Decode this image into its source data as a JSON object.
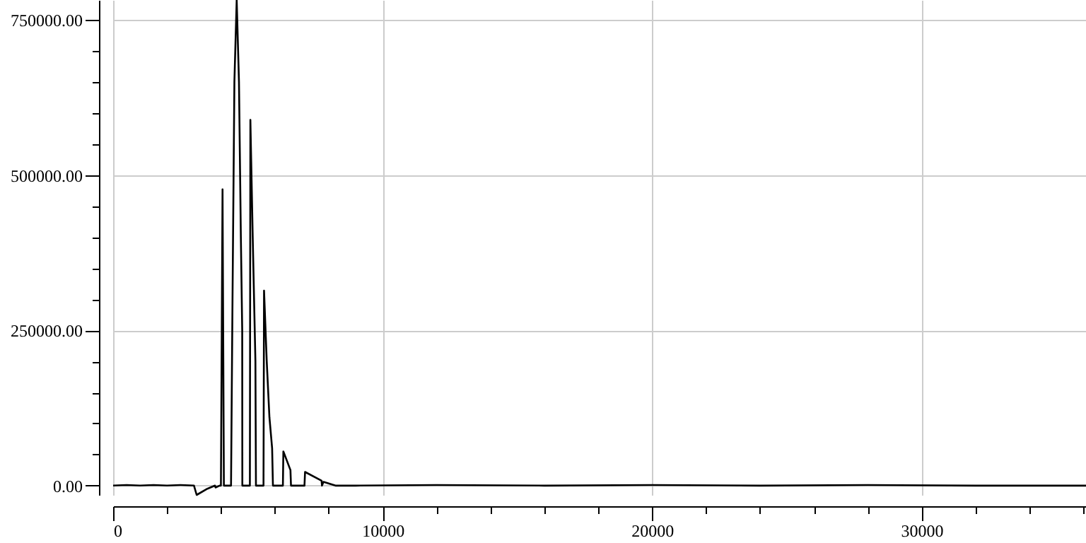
{
  "chart_data": {
    "type": "line",
    "x": [
      0,
      500,
      1000,
      1500,
      2000,
      2500,
      3000,
      3100,
      3500,
      3780,
      3800,
      3950,
      4000,
      4060,
      4110,
      4375,
      4430,
      4500,
      4585,
      4670,
      4740,
      4790,
      4795,
      5075,
      5093,
      5180,
      5280,
      5300,
      5580,
      5600,
      5700,
      5800,
      5900,
      5930,
      6300,
      6317,
      6580,
      6600,
      7100,
      7122,
      7735,
      7750,
      7805,
      8250,
      9000,
      12000,
      16000,
      20000,
      24000,
      28000,
      32000,
      36100
    ],
    "series": [
      {
        "color": "#000000",
        "values": [
          0,
          1000,
          0,
          1000,
          0,
          1000,
          0,
          -15000,
          -5000,
          0,
          -3000,
          0,
          0,
          477000,
          0,
          0,
          300000,
          650000,
          782000,
          650000,
          400000,
          250000,
          0,
          0,
          589000,
          400000,
          200000,
          0,
          0,
          314000,
          200000,
          110000,
          60000,
          0,
          0,
          55000,
          25000,
          0,
          0,
          22000,
          8000,
          0,
          6000,
          0,
          0,
          1000,
          0,
          1000,
          0,
          1000,
          0,
          0
        ]
      }
    ],
    "xlim": [
      0,
      36100
    ],
    "ylim": [
      -15000,
      782000
    ],
    "xticks": [
      0,
      {
        "value": 2000,
        "label": null
      },
      {
        "value": 4000,
        "label": null
      },
      {
        "value": 6000,
        "label": null
      },
      {
        "value": 8000,
        "label": null
      },
      10000,
      {
        "value": 12000,
        "label": null
      },
      {
        "value": 14000,
        "label": null
      },
      {
        "value": 16000,
        "label": null
      },
      {
        "value": 18000,
        "label": null
      },
      20000,
      {
        "value": 22000,
        "label": null
      },
      {
        "value": 24000,
        "label": null
      },
      {
        "value": 26000,
        "label": null
      },
      {
        "value": 28000,
        "label": null
      },
      30000,
      {
        "value": 32000,
        "label": null
      },
      {
        "value": 34000,
        "label": null
      },
      {
        "value": 36000,
        "label": null
      }
    ],
    "yticks": [
      {
        "value": 0,
        "label": "0.00"
      },
      {
        "value": 50000,
        "label": null
      },
      {
        "value": 100000,
        "label": null
      },
      {
        "value": 150000,
        "label": null
      },
      {
        "value": 200000,
        "label": null
      },
      {
        "value": 250000,
        "label": "250000.00"
      },
      {
        "value": 300000,
        "label": null
      },
      {
        "value": 350000,
        "label": null
      },
      {
        "value": 400000,
        "label": null
      },
      {
        "value": 450000,
        "label": null
      },
      {
        "value": 500000,
        "label": "500000.00"
      },
      {
        "value": 550000,
        "label": null
      },
      {
        "value": 600000,
        "label": null
      },
      {
        "value": 650000,
        "label": null
      },
      {
        "value": 700000,
        "label": null
      },
      {
        "value": 750000,
        "label": "750000.00"
      }
    ],
    "grid": true,
    "marker": "none",
    "line_style": "solid"
  }
}
